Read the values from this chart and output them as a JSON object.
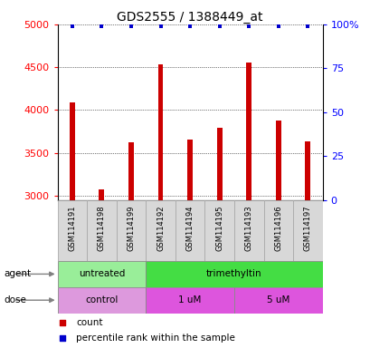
{
  "title": "GDS2555 / 1388449_at",
  "samples": [
    "GSM114191",
    "GSM114198",
    "GSM114199",
    "GSM114192",
    "GSM114194",
    "GSM114195",
    "GSM114193",
    "GSM114196",
    "GSM114197"
  ],
  "counts": [
    4090,
    3070,
    3620,
    4530,
    3660,
    3790,
    4560,
    3880,
    3630
  ],
  "percentile_ranks": [
    99,
    99,
    99,
    99,
    99,
    99,
    99,
    99,
    99
  ],
  "ylim_left": [
    2950,
    5000
  ],
  "ylim_right": [
    0,
    100
  ],
  "yticks_left": [
    3000,
    3500,
    4000,
    4500,
    5000
  ],
  "yticks_right": [
    0,
    25,
    50,
    75,
    100
  ],
  "yticklabels_right": [
    "0",
    "25",
    "50",
    "75",
    "100%"
  ],
  "bar_color": "#cc0000",
  "dot_color": "#0000cc",
  "agent_groups": [
    {
      "label": "untreated",
      "start": 0,
      "end": 3,
      "color": "#99ee99"
    },
    {
      "label": "trimethyltin",
      "start": 3,
      "end": 9,
      "color": "#44dd44"
    }
  ],
  "dose_groups": [
    {
      "label": "control",
      "start": 0,
      "end": 3,
      "color": "#dd99dd"
    },
    {
      "label": "1 uM",
      "start": 3,
      "end": 6,
      "color": "#dd55dd"
    },
    {
      "label": "5 uM",
      "start": 6,
      "end": 9,
      "color": "#dd55dd"
    }
  ],
  "xlabel_agent": "agent",
  "xlabel_dose": "dose",
  "legend_count_color": "#cc0000",
  "legend_dot_color": "#0000cc",
  "background_color": "#ffffff",
  "sample_box_color": "#d8d8d8"
}
